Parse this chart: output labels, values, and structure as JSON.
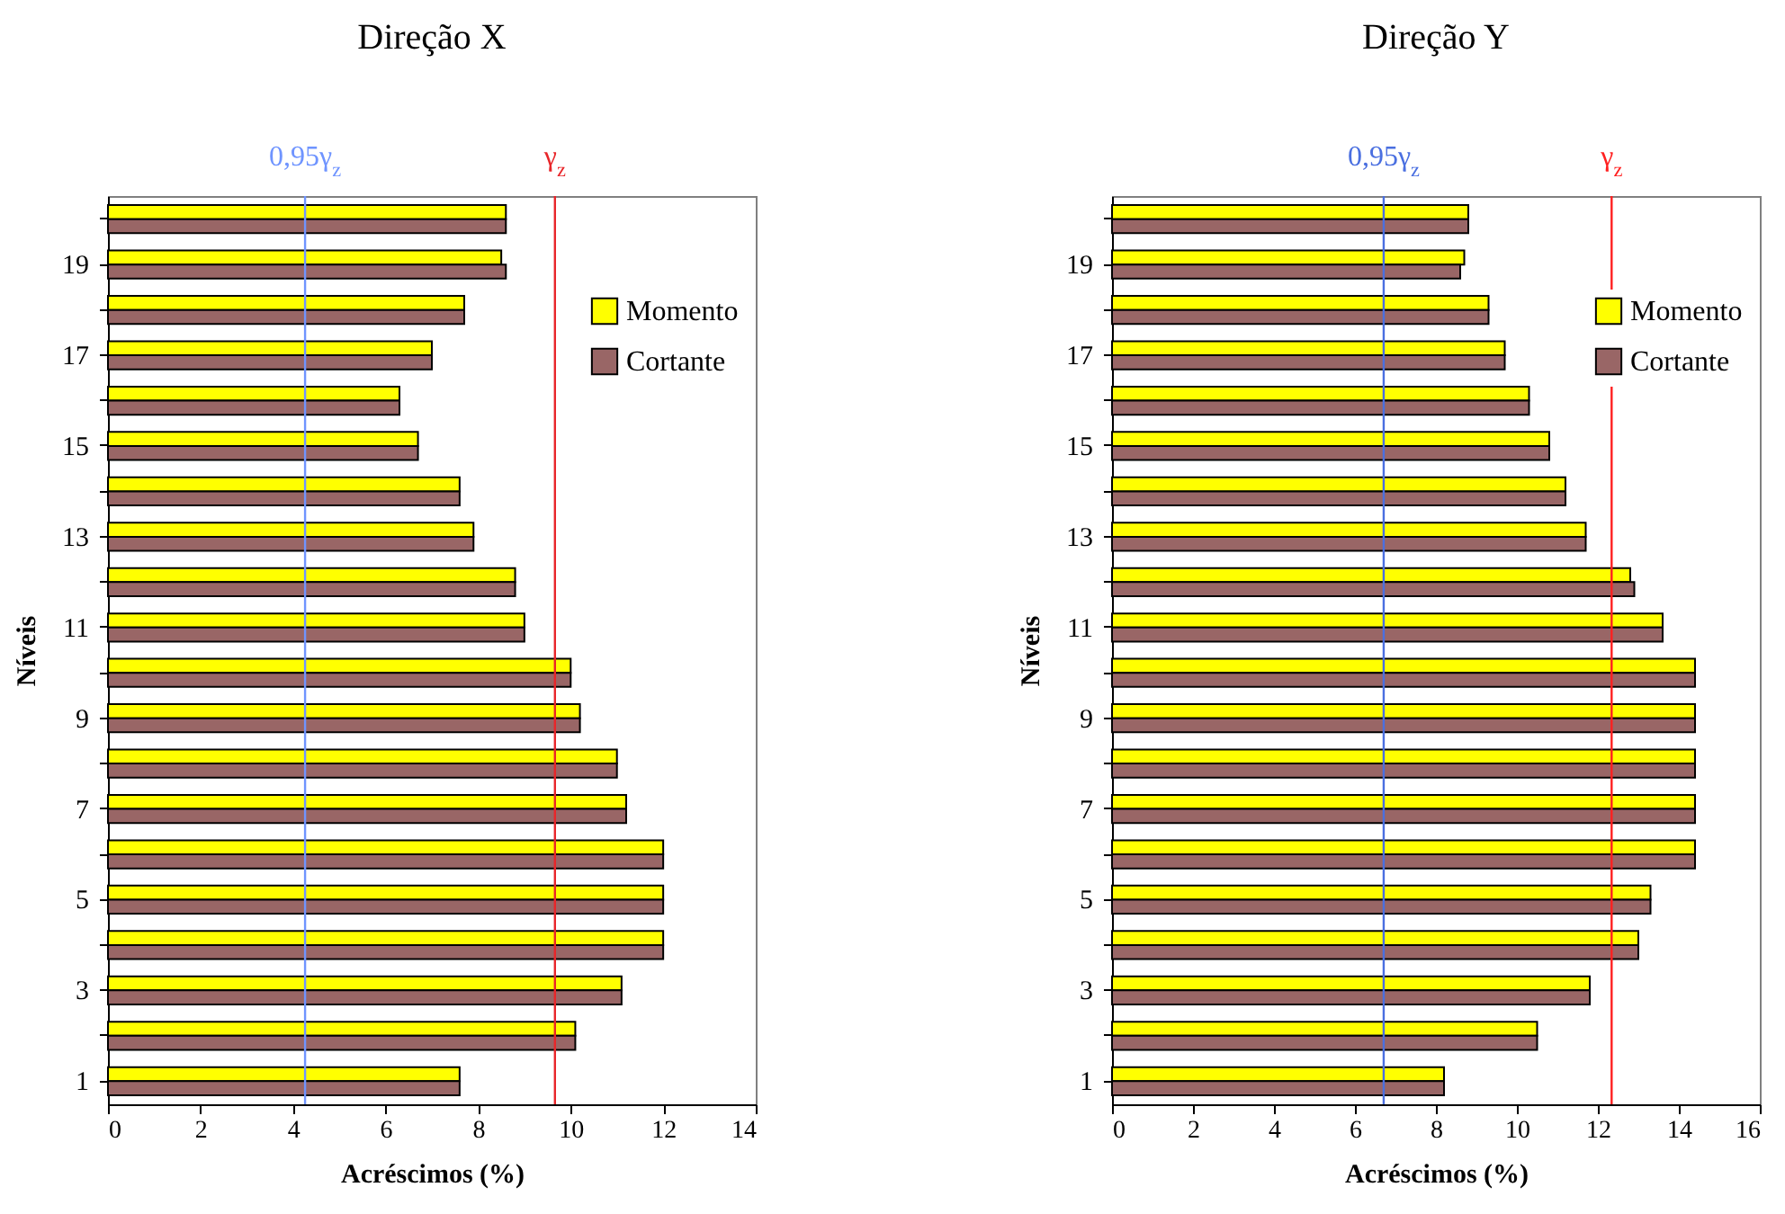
{
  "chart_data": [
    {
      "type": "bar",
      "orientation": "horizontal",
      "title": "Direção X",
      "xlabel": "Acréscimos (%)",
      "ylabel": "Níveis",
      "legend": "top right",
      "categories": [
        null,
        "19",
        null,
        "17",
        null,
        "15",
        null,
        "13",
        null,
        "11",
        null,
        "9",
        null,
        "7",
        null,
        "5",
        null,
        "3",
        null,
        "1"
      ],
      "series": [
        {
          "name": "Momento",
          "color": "#ffff00",
          "values": [
            8.6,
            8.5,
            7.7,
            7.0,
            6.3,
            6.7,
            7.6,
            7.9,
            8.8,
            9.0,
            10.0,
            10.2,
            11.0,
            11.2,
            12.0,
            12.0,
            12.0,
            11.1,
            10.1,
            7.6
          ]
        },
        {
          "name": "Cortante",
          "color": "#996666",
          "values": [
            8.6,
            8.6,
            7.7,
            7.0,
            6.3,
            6.7,
            7.6,
            7.9,
            8.8,
            9.0,
            10.0,
            10.2,
            11.0,
            11.2,
            12.0,
            12.0,
            12.0,
            11.1,
            10.1,
            7.6
          ]
        }
      ],
      "xlim": [
        0,
        14
      ],
      "xticks": [
        0,
        2,
        4,
        6,
        8,
        10,
        12,
        14
      ],
      "ref_lines": [
        {
          "axis": "x",
          "value": 4.26,
          "label": "0,95γ$_{z}$",
          "color": "#6f94ff"
        },
        {
          "axis": "x",
          "value": 9.66,
          "label": "γ$_{z}$",
          "color": "#e8262a"
        }
      ]
    },
    {
      "type": "bar",
      "orientation": "horizontal",
      "title": "Direção Y",
      "xlabel": "Acréscimos (%)",
      "ylabel": "Níveis",
      "legend": "top right",
      "categories": [
        null,
        "19",
        null,
        "17",
        null,
        "15",
        null,
        "13",
        null,
        "11",
        null,
        "9",
        null,
        "7",
        null,
        "5",
        null,
        "3",
        null,
        "1"
      ],
      "series": [
        {
          "name": "Momento",
          "color": "#ffff00",
          "values": [
            8.8,
            8.7,
            9.3,
            9.7,
            10.3,
            10.8,
            11.2,
            11.7,
            12.8,
            13.6,
            14.4,
            14.4,
            14.4,
            14.4,
            14.4,
            13.3,
            13.0,
            11.8,
            10.5,
            8.2
          ]
        },
        {
          "name": "Cortante",
          "color": "#996666",
          "values": [
            8.8,
            8.6,
            9.3,
            9.7,
            10.3,
            10.8,
            11.2,
            11.7,
            12.9,
            13.6,
            14.4,
            14.4,
            14.4,
            14.4,
            14.4,
            13.3,
            13.0,
            11.8,
            10.5,
            8.2
          ]
        }
      ],
      "xlim": [
        0,
        16
      ],
      "xticks": [
        0,
        2,
        4,
        6,
        8,
        10,
        12,
        14,
        16
      ],
      "ref_lines": [
        {
          "axis": "x",
          "value": 6.71,
          "label": "0,95γ$_{z}$",
          "color": "#4a6fe0"
        },
        {
          "axis": "x",
          "value": 12.34,
          "label": "γ$_{z}$",
          "color": "#ff2020"
        }
      ]
    }
  ]
}
